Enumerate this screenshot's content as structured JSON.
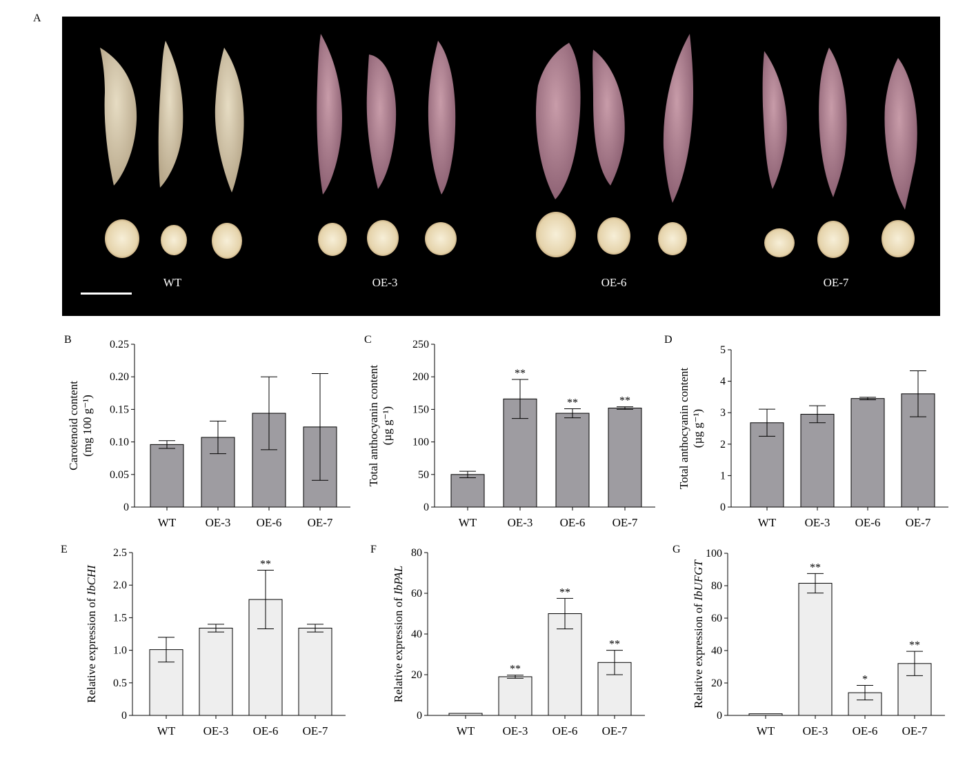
{
  "figure": {
    "panel_labels": [
      "A",
      "B",
      "C",
      "D",
      "E",
      "F",
      "G"
    ]
  },
  "photo_panel": {
    "description_groups": [
      "WT",
      "OE-3",
      "OE-6",
      "OE-7"
    ],
    "scale_bar": true,
    "colors": {
      "background": "#000000",
      "wt_root": "#d9ccb1",
      "oe_root": "#b98a98",
      "flesh": "#efe2c4"
    }
  },
  "chart_data": [
    {
      "panel": "B",
      "type": "bar",
      "categories": [
        "WT",
        "OE-3",
        "OE-6",
        "OE-7"
      ],
      "values": [
        0.096,
        0.107,
        0.144,
        0.123
      ],
      "errors": [
        0.006,
        0.025,
        0.056,
        0.082
      ],
      "significance": [
        "",
        "",
        "",
        ""
      ],
      "ylabel_line1": "Carotenoid content",
      "ylabel_line2": "(mg 100 g⁻¹)",
      "ylim": [
        0,
        0.25
      ],
      "yticks": [
        0,
        0.05,
        0.1,
        0.15,
        0.2,
        0.25
      ],
      "ytick_labels": [
        "0",
        "0.05",
        "0.10",
        "0.15",
        "0.20",
        "0.25"
      ],
      "bar_color": "#9e9ca1"
    },
    {
      "panel": "C",
      "type": "bar",
      "categories": [
        "WT",
        "OE-3",
        "OE-6",
        "OE-7"
      ],
      "values": [
        50,
        166,
        144,
        152
      ],
      "errors": [
        5,
        30,
        7,
        2
      ],
      "significance": [
        "",
        "**",
        "**",
        "**"
      ],
      "ylabel_line1": "Total anthocyanin content",
      "ylabel_line2": "(µg g⁻¹)",
      "ylim": [
        0,
        250
      ],
      "yticks": [
        0,
        50,
        100,
        150,
        200,
        250
      ],
      "ytick_labels": [
        "0",
        "50",
        "100",
        "150",
        "200",
        "250"
      ],
      "bar_color": "#9e9ca1"
    },
    {
      "panel": "D",
      "type": "bar",
      "categories": [
        "WT",
        "OE-3",
        "OE-6",
        "OE-7"
      ],
      "values": [
        2.68,
        2.95,
        3.45,
        3.6
      ],
      "errors": [
        0.43,
        0.27,
        0.04,
        0.73
      ],
      "significance": [
        "",
        "",
        "",
        ""
      ],
      "ylabel_line1": "Total anthocyanin content",
      "ylabel_line2": "(µg g⁻¹)",
      "ylim": [
        0,
        5
      ],
      "yticks": [
        0,
        1,
        2,
        3,
        4,
        5
      ],
      "ytick_labels": [
        "0",
        "1",
        "2",
        "3",
        "4",
        "5"
      ],
      "bar_color": "#9e9ca1"
    },
    {
      "panel": "E",
      "type": "bar",
      "categories": [
        "WT",
        "OE-3",
        "OE-6",
        "OE-7"
      ],
      "values": [
        1.01,
        1.34,
        1.78,
        1.34
      ],
      "errors": [
        0.19,
        0.06,
        0.45,
        0.06
      ],
      "significance": [
        "",
        "",
        "**",
        ""
      ],
      "ylabel_prefix": "Relative expression of ",
      "ylabel_gene": "IbCHI",
      "ylim": [
        0,
        2.5
      ],
      "yticks": [
        0,
        0.5,
        1.0,
        1.5,
        2.0,
        2.5
      ],
      "ytick_labels": [
        "0",
        "0.5",
        "1.0",
        "1.5",
        "2.0",
        "2.5"
      ],
      "bar_color": "#eeeeee"
    },
    {
      "panel": "F",
      "type": "bar",
      "categories": [
        "WT",
        "OE-3",
        "OE-6",
        "OE-7"
      ],
      "values": [
        1,
        19,
        50,
        26
      ],
      "errors": [
        0,
        0.8,
        7.5,
        6
      ],
      "significance": [
        "",
        "**",
        "**",
        "**"
      ],
      "ylabel_prefix": "Relative expression of ",
      "ylabel_gene": "IbPAL",
      "ylim": [
        0,
        80
      ],
      "yticks": [
        0,
        20,
        40,
        60,
        80
      ],
      "ytick_labels": [
        "0",
        "20",
        "40",
        "60",
        "80"
      ],
      "bar_color": "#eeeeee"
    },
    {
      "panel": "G",
      "type": "bar",
      "categories": [
        "WT",
        "OE-3",
        "OE-6",
        "OE-7"
      ],
      "values": [
        1,
        81.5,
        14,
        32
      ],
      "errors": [
        0,
        6,
        4.5,
        7.5
      ],
      "significance": [
        "",
        "**",
        "*",
        "**"
      ],
      "ylabel_prefix": "Relative expression of ",
      "ylabel_gene": "IbUFGT",
      "ylim": [
        0,
        100
      ],
      "yticks": [
        0,
        20,
        40,
        60,
        80,
        100
      ],
      "ytick_labels": [
        "0",
        "20",
        "40",
        "60",
        "80",
        "100"
      ],
      "bar_color": "#eeeeee"
    }
  ]
}
